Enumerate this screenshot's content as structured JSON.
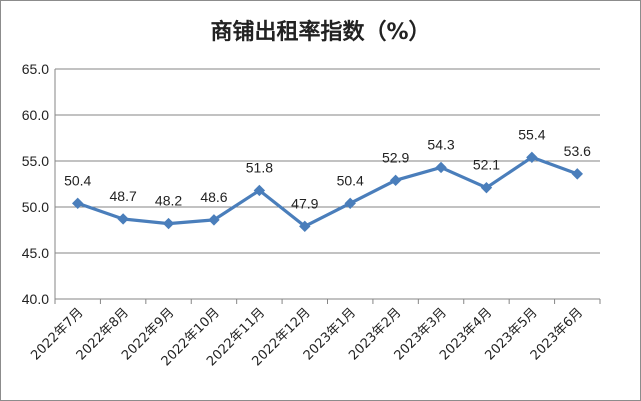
{
  "chart_data": {
    "type": "line",
    "title": "商铺出租率指数（%）",
    "categories": [
      "2022年7月",
      "2022年8月",
      "2022年9月",
      "2022年10月",
      "2022年11月",
      "2022年12月",
      "2023年1月",
      "2023年2月",
      "2023年3月",
      "2023年4月",
      "2023年5月",
      "2023年6月"
    ],
    "series": [
      {
        "values": [
          50.4,
          48.7,
          48.2,
          48.6,
          51.8,
          47.9,
          50.4,
          52.9,
          54.3,
          52.1,
          55.4,
          53.6
        ]
      }
    ],
    "ylim": [
      40.0,
      65.0
    ],
    "yticks": [
      "40.0",
      "45.0",
      "50.0",
      "55.0",
      "60.0",
      "65.0"
    ],
    "data_labels": [
      "50.4",
      "48.7",
      "48.2",
      "48.6",
      "51.8",
      "47.9",
      "50.4",
      "52.9",
      "54.3",
      "52.1",
      "55.4",
      "53.6"
    ],
    "grid": "horizontal",
    "legend": "none",
    "colors": {
      "line": "#4a7ebb",
      "grid": "#868686",
      "axis": "#868686"
    }
  }
}
